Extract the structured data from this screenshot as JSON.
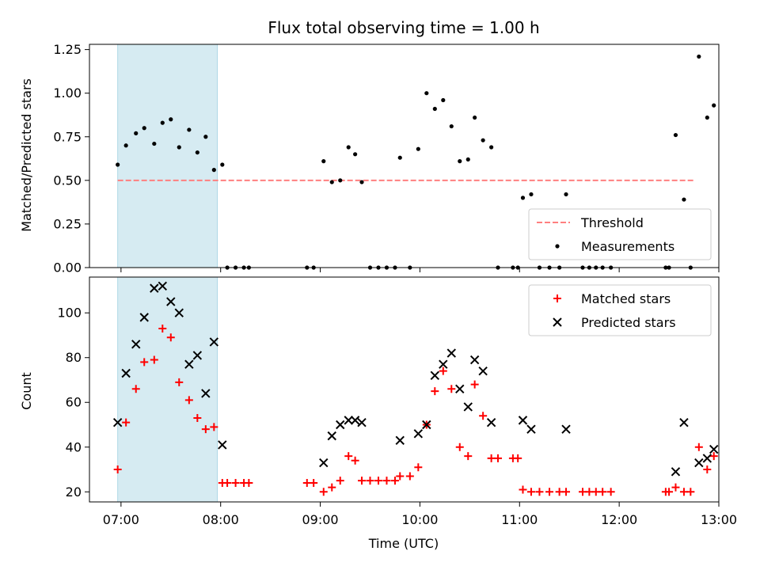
{
  "colors": {
    "shade": "#add8e6",
    "threshold": "#ff7f7f",
    "measurement": "#000000",
    "matched": "#ff0000",
    "predicted": "#000000"
  },
  "chart_data": [
    {
      "type": "scatter",
      "title": "Flux total observing time = 1.00 h",
      "ylabel": "Matched/Predicted stars",
      "xlim": [
        "06:41",
        "13:00"
      ],
      "ylim": [
        0,
        1.28
      ],
      "yticks": [
        "0.00",
        "0.25",
        "0.50",
        "0.75",
        "1.00",
        "1.25"
      ],
      "shaded_interval": [
        "06:58",
        "07:58"
      ],
      "threshold": {
        "name": "Threshold",
        "value": 0.5,
        "x_range": [
          "06:58",
          "12:45"
        ]
      },
      "legend": {
        "placement": "lower-right",
        "entries": [
          "Threshold",
          "Measurements"
        ]
      },
      "series": [
        {
          "name": "Measurements",
          "points": [
            [
              "06:58",
              0.59
            ],
            [
              "07:03",
              0.7
            ],
            [
              "07:09",
              0.77
            ],
            [
              "07:14",
              0.8
            ],
            [
              "07:20",
              0.71
            ],
            [
              "07:25",
              0.83
            ],
            [
              "07:30",
              0.85
            ],
            [
              "07:35",
              0.69
            ],
            [
              "07:41",
              0.79
            ],
            [
              "07:46",
              0.66
            ],
            [
              "07:51",
              0.75
            ],
            [
              "07:56",
              0.56
            ],
            [
              "08:01",
              0.59
            ],
            [
              "08:04",
              0.0
            ],
            [
              "08:09",
              0.0
            ],
            [
              "08:14",
              0.0
            ],
            [
              "08:17",
              0.0
            ],
            [
              "08:52",
              0.0
            ],
            [
              "08:56",
              0.0
            ],
            [
              "09:02",
              0.61
            ],
            [
              "09:07",
              0.49
            ],
            [
              "09:12",
              0.5
            ],
            [
              "09:17",
              0.69
            ],
            [
              "09:21",
              0.65
            ],
            [
              "09:25",
              0.49
            ],
            [
              "09:30",
              0.0
            ],
            [
              "09:35",
              0.0
            ],
            [
              "09:40",
              0.0
            ],
            [
              "09:45",
              0.0
            ],
            [
              "09:48",
              0.63
            ],
            [
              "09:54",
              0.0
            ],
            [
              "09:59",
              0.68
            ],
            [
              "10:04",
              1.0
            ],
            [
              "10:09",
              0.91
            ],
            [
              "10:14",
              0.96
            ],
            [
              "10:19",
              0.81
            ],
            [
              "10:24",
              0.61
            ],
            [
              "10:29",
              0.62
            ],
            [
              "10:33",
              0.86
            ],
            [
              "10:38",
              0.73
            ],
            [
              "10:43",
              0.69
            ],
            [
              "10:47",
              0.0
            ],
            [
              "10:56",
              0.0
            ],
            [
              "10:59",
              0.0
            ],
            [
              "11:02",
              0.4
            ],
            [
              "11:07",
              0.42
            ],
            [
              "11:12",
              0.0
            ],
            [
              "11:18",
              0.0
            ],
            [
              "11:24",
              0.0
            ],
            [
              "11:28",
              0.42
            ],
            [
              "11:38",
              0.0
            ],
            [
              "11:42",
              0.0
            ],
            [
              "11:46",
              0.0
            ],
            [
              "11:50",
              0.0
            ],
            [
              "11:55",
              0.0
            ],
            [
              "12:28",
              0.0
            ],
            [
              "12:30",
              0.0
            ],
            [
              "12:34",
              0.76
            ],
            [
              "12:39",
              0.39
            ],
            [
              "12:43",
              0.0
            ],
            [
              "12:48",
              1.21
            ],
            [
              "12:53",
              0.86
            ],
            [
              "12:57",
              0.93
            ]
          ]
        }
      ]
    },
    {
      "type": "scatter",
      "xlabel": "Time (UTC)",
      "ylabel": "Count",
      "xlim": [
        "06:41",
        "13:00"
      ],
      "ylim": [
        15.5,
        116
      ],
      "yticks": [
        "20",
        "40",
        "60",
        "80",
        "100"
      ],
      "xticks": [
        "07:00",
        "08:00",
        "09:00",
        "10:00",
        "11:00",
        "12:00",
        "13:00"
      ],
      "shaded_interval": [
        "06:58",
        "07:58"
      ],
      "legend": {
        "placement": "upper-right",
        "entries": [
          "Matched stars",
          "Predicted stars"
        ]
      },
      "series": [
        {
          "name": "Matched stars",
          "points": [
            [
              "06:58",
              30
            ],
            [
              "07:03",
              51
            ],
            [
              "07:09",
              66
            ],
            [
              "07:14",
              78
            ],
            [
              "07:20",
              79
            ],
            [
              "07:25",
              93
            ],
            [
              "07:30",
              89
            ],
            [
              "07:35",
              69
            ],
            [
              "07:41",
              61
            ],
            [
              "07:46",
              53
            ],
            [
              "07:51",
              48
            ],
            [
              "07:56",
              49
            ],
            [
              "08:01",
              24
            ],
            [
              "08:04",
              24
            ],
            [
              "08:09",
              24
            ],
            [
              "08:14",
              24
            ],
            [
              "08:17",
              24
            ],
            [
              "08:52",
              24
            ],
            [
              "08:56",
              24
            ],
            [
              "09:02",
              20
            ],
            [
              "09:07",
              22
            ],
            [
              "09:12",
              25
            ],
            [
              "09:17",
              36
            ],
            [
              "09:21",
              34
            ],
            [
              "09:25",
              25
            ],
            [
              "09:30",
              25
            ],
            [
              "09:35",
              25
            ],
            [
              "09:40",
              25
            ],
            [
              "09:45",
              25
            ],
            [
              "09:48",
              27
            ],
            [
              "09:54",
              27
            ],
            [
              "09:59",
              31
            ],
            [
              "10:04",
              50
            ],
            [
              "10:09",
              65
            ],
            [
              "10:14",
              74
            ],
            [
              "10:19",
              66
            ],
            [
              "10:24",
              40
            ],
            [
              "10:29",
              36
            ],
            [
              "10:33",
              68
            ],
            [
              "10:38",
              54
            ],
            [
              "10:43",
              35
            ],
            [
              "10:47",
              35
            ],
            [
              "10:56",
              35
            ],
            [
              "10:59",
              35
            ],
            [
              "11:02",
              21
            ],
            [
              "11:07",
              20
            ],
            [
              "11:12",
              20
            ],
            [
              "11:18",
              20
            ],
            [
              "11:24",
              20
            ],
            [
              "11:28",
              20
            ],
            [
              "11:38",
              20
            ],
            [
              "11:42",
              20
            ],
            [
              "11:46",
              20
            ],
            [
              "11:50",
              20
            ],
            [
              "11:55",
              20
            ],
            [
              "12:28",
              20
            ],
            [
              "12:30",
              20
            ],
            [
              "12:34",
              22
            ],
            [
              "12:39",
              20
            ],
            [
              "12:43",
              20
            ],
            [
              "12:48",
              40
            ],
            [
              "12:53",
              30
            ],
            [
              "12:57",
              36
            ]
          ]
        },
        {
          "name": "Predicted stars",
          "points": [
            [
              "06:58",
              51
            ],
            [
              "07:03",
              73
            ],
            [
              "07:09",
              86
            ],
            [
              "07:14",
              98
            ],
            [
              "07:20",
              111
            ],
            [
              "07:25",
              112
            ],
            [
              "07:30",
              105
            ],
            [
              "07:35",
              100
            ],
            [
              "07:41",
              77
            ],
            [
              "07:46",
              81
            ],
            [
              "07:51",
              64
            ],
            [
              "07:56",
              87
            ],
            [
              "08:01",
              41
            ],
            [
              "09:02",
              33
            ],
            [
              "09:07",
              45
            ],
            [
              "09:12",
              50
            ],
            [
              "09:17",
              52
            ],
            [
              "09:21",
              52
            ],
            [
              "09:25",
              51
            ],
            [
              "09:48",
              43
            ],
            [
              "09:59",
              46
            ],
            [
              "10:04",
              50
            ],
            [
              "10:09",
              72
            ],
            [
              "10:14",
              77
            ],
            [
              "10:19",
              82
            ],
            [
              "10:24",
              66
            ],
            [
              "10:29",
              58
            ],
            [
              "10:33",
              79
            ],
            [
              "10:38",
              74
            ],
            [
              "10:43",
              51
            ],
            [
              "11:02",
              52
            ],
            [
              "11:07",
              48
            ],
            [
              "11:28",
              48
            ],
            [
              "12:34",
              29
            ],
            [
              "12:39",
              51
            ],
            [
              "12:48",
              33
            ],
            [
              "12:53",
              35
            ],
            [
              "12:57",
              39
            ]
          ]
        }
      ]
    }
  ]
}
